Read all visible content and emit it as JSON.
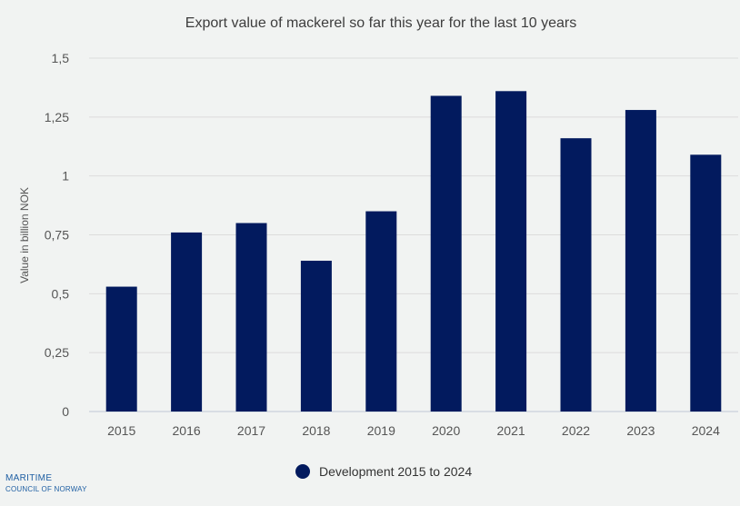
{
  "chart_data": {
    "type": "bar",
    "title": "Export value of mackerel so far this year for the last 10 years",
    "ylabel": "Value in billion NOK",
    "xlabel": "",
    "categories": [
      "2015",
      "2016",
      "2017",
      "2018",
      "2019",
      "2020",
      "2021",
      "2022",
      "2023",
      "2024"
    ],
    "series": [
      {
        "name": "Development 2015 to 2024",
        "values": [
          0.53,
          0.76,
          0.8,
          0.64,
          0.85,
          1.34,
          1.36,
          1.16,
          1.28,
          1.09
        ],
        "color": "#021a5e"
      }
    ],
    "ylim": [
      0,
      1.5
    ],
    "yticks": [
      "0",
      "0,25",
      "0,5",
      "0,75",
      "1",
      "1,25",
      "1,5"
    ],
    "grid": true,
    "legend_position": "bottom-center"
  },
  "logo": {
    "line1": "MARITIME",
    "line2": "COUNCIL OF NORWAY"
  }
}
